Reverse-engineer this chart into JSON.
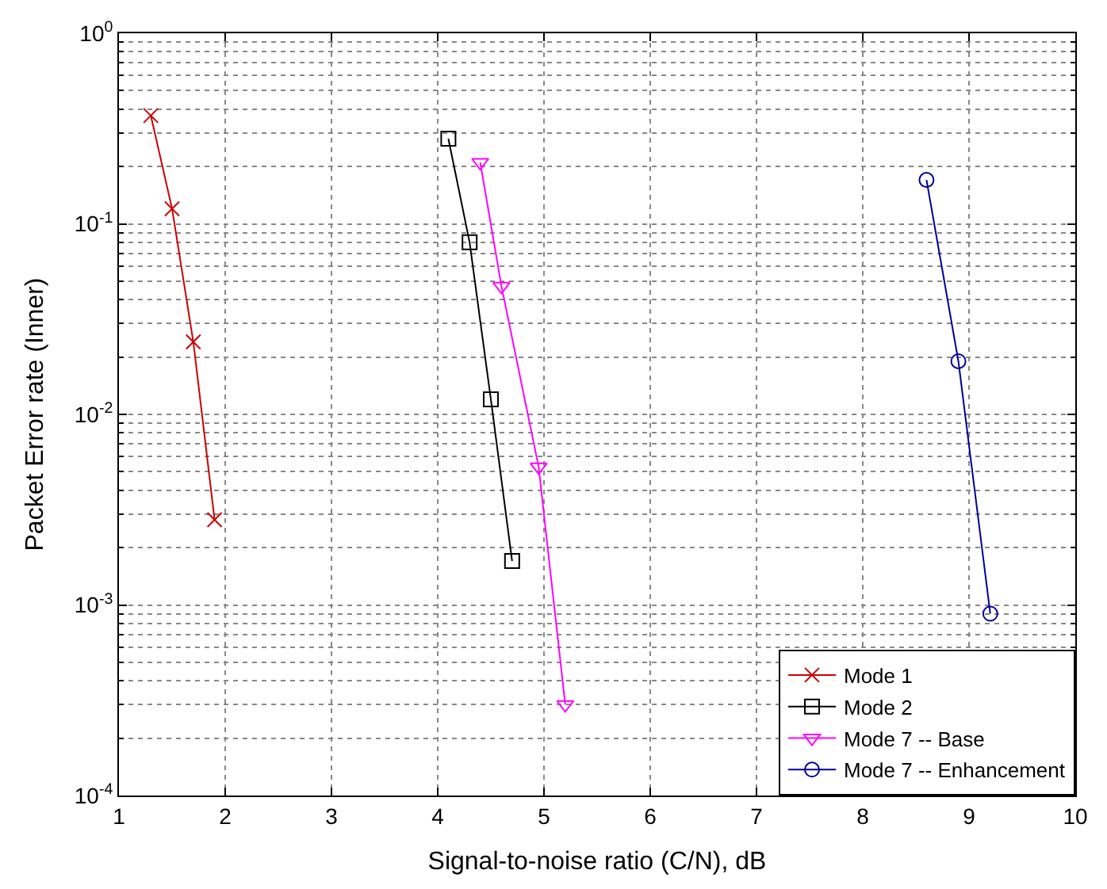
{
  "chart_data": {
    "type": "line",
    "xlabel": "Signal-to-noise ratio (C/N), dB",
    "ylabel": "Packet Error rate (Inner)",
    "log": "y",
    "grid": true,
    "legend": "bottom right",
    "xlim": [
      1,
      10
    ],
    "xticks": [
      1,
      2,
      3,
      4,
      5,
      6,
      7,
      8,
      9,
      10
    ],
    "ylim": [
      0.0001,
      1
    ],
    "yticks": [
      {
        "value": 0.0001,
        "label": "10$^{-4}$"
      },
      {
        "value": 0.001,
        "label": "10$^{-3}$"
      },
      {
        "value": 0.01,
        "label": "10$^{-2}$"
      },
      {
        "value": 0.1,
        "label": "10$^{-1}$"
      },
      {
        "value": 1,
        "label": "10$^{0}$"
      }
    ],
    "series": [
      {
        "name": "Mode 1",
        "color": "#cc0000",
        "marker": "cross",
        "x": [
          1.3,
          1.5,
          1.7,
          1.9
        ],
        "values": [
          0.37,
          0.12,
          0.024,
          0.0028
        ]
      },
      {
        "name": "Mode 2",
        "color": "#000000",
        "marker": "square",
        "x": [
          4.1,
          4.3,
          4.5,
          4.7
        ],
        "values": [
          0.28,
          0.08,
          0.012,
          0.0017
        ]
      },
      {
        "name": "Mode 7 -- Base",
        "color": "#ff00ff",
        "marker": "triangle",
        "x": [
          4.4,
          4.6,
          4.95,
          5.2
        ],
        "values": [
          0.21,
          0.047,
          0.0053,
          0.0003
        ]
      },
      {
        "name": "Mode 7 -- Enhancement",
        "color": "#000099",
        "marker": "circle",
        "x": [
          8.6,
          8.9,
          9.2
        ],
        "values": [
          0.17,
          0.019,
          0.0009
        ]
      }
    ]
  }
}
